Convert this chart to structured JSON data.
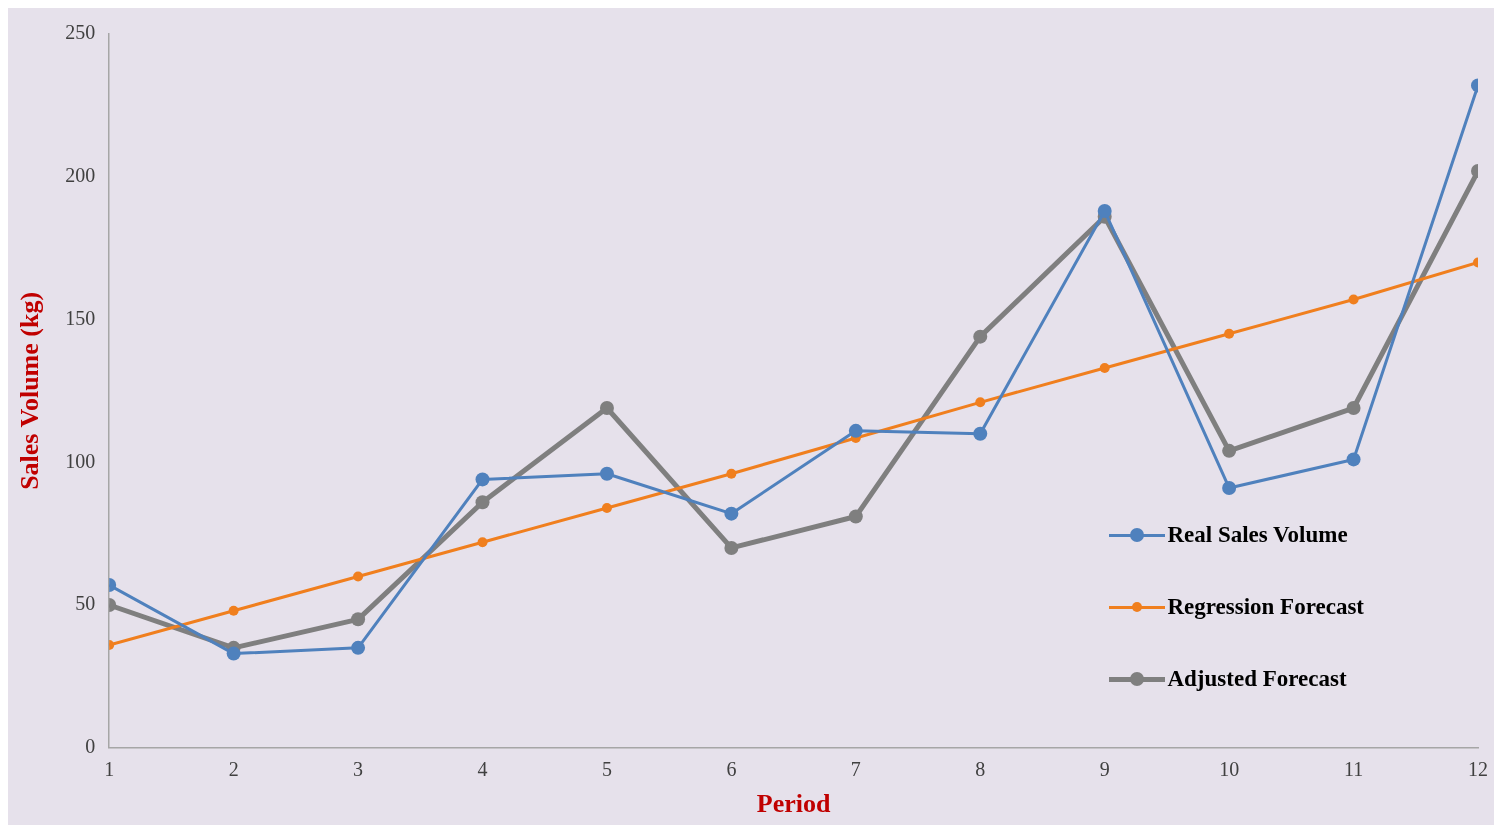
{
  "chart_data": {
    "type": "line",
    "xlabel": "Period",
    "ylabel": "Sales Volume (kg)",
    "x": [
      1,
      2,
      3,
      4,
      5,
      6,
      7,
      8,
      9,
      10,
      11,
      12
    ],
    "xlim": [
      1,
      12
    ],
    "xticks": [
      1,
      2,
      3,
      4,
      5,
      6,
      7,
      8,
      9,
      10,
      11,
      12
    ],
    "ylim": [
      0,
      250
    ],
    "yticks": [
      0,
      50,
      100,
      150,
      200,
      250
    ],
    "grid": false,
    "legend": "right",
    "marker": "circle",
    "line_style": "solid",
    "series": [
      {
        "name": "Real Sales Volume",
        "color": "#4f81bd",
        "values": [
          57,
          33,
          35,
          94,
          96,
          82,
          111,
          110,
          188,
          91,
          101,
          232
        ]
      },
      {
        "name": "Regression Forecast",
        "color": "#f07f1e",
        "values": [
          36,
          48,
          60,
          72,
          84,
          96,
          108.5,
          121,
          133,
          145,
          157,
          170
        ]
      },
      {
        "name": "Adjusted Forecast",
        "color": "#7f7f7f",
        "values": [
          50,
          35,
          45,
          86,
          119,
          70,
          81,
          144,
          186,
          104,
          119,
          202
        ]
      }
    ]
  }
}
